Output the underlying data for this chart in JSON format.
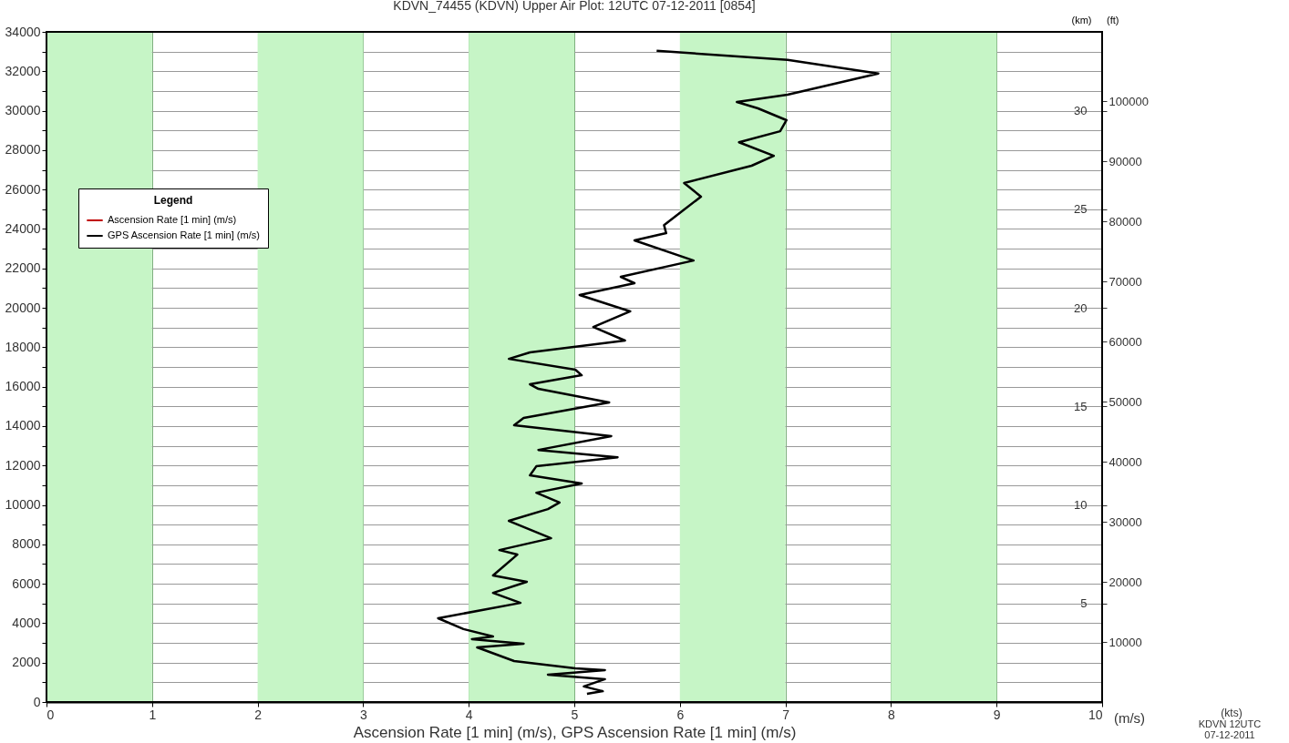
{
  "chart_data": {
    "type": "line",
    "title": "KDVN_74455 (KDVN) Upper Air Plot: 12UTC 07-12-2011 [0854]",
    "xlabel": "Ascension Rate [1 min] (m/s), GPS Ascension Rate [1 min] (m/s)",
    "y2label": "(km)",
    "y3label": "(ft)",
    "legend_title": "Legend",
    "legend": "top left",
    "grid": true,
    "marker": "none",
    "line_style": "solid",
    "xlim": [
      0,
      10
    ],
    "xticks": [
      0,
      1,
      2,
      3,
      4,
      5,
      6,
      7,
      8,
      9,
      10
    ],
    "ylim": [
      0,
      34000
    ],
    "yticks": [
      0,
      {
        "value": 1000,
        "label": null
      },
      2000,
      {
        "value": 3000,
        "label": null
      },
      4000,
      {
        "value": 5000,
        "label": null
      },
      6000,
      {
        "value": 7000,
        "label": null
      },
      8000,
      {
        "value": 9000,
        "label": null
      },
      10000,
      {
        "value": 11000,
        "label": null
      },
      12000,
      {
        "value": 13000,
        "label": null
      },
      14000,
      {
        "value": 15000,
        "label": null
      },
      16000,
      {
        "value": 17000,
        "label": null
      },
      18000,
      {
        "value": 19000,
        "label": null
      },
      20000,
      {
        "value": 21000,
        "label": null
      },
      22000,
      {
        "value": 23000,
        "label": null
      },
      24000,
      {
        "value": 25000,
        "label": null
      },
      26000,
      {
        "value": 27000,
        "label": null
      },
      28000,
      {
        "value": 29000,
        "label": null
      },
      30000,
      {
        "value": 31000,
        "label": null
      },
      32000,
      {
        "value": 33000,
        "label": null
      },
      34000
    ],
    "y2lim": [
      0,
      34
    ],
    "y2ticks": [
      5,
      10,
      15,
      20,
      25,
      30
    ],
    "y3lim": [
      0,
      111549
    ],
    "y3ticks": [
      10000,
      20000,
      30000,
      40000,
      50000,
      60000,
      70000,
      80000,
      90000,
      100000
    ],
    "bands": [
      {
        "axis": "x",
        "from": 0,
        "to": 1,
        "color": "#c6f5c6"
      },
      {
        "axis": "x",
        "from": 2,
        "to": 3,
        "color": "#c6f5c6"
      },
      {
        "axis": "x",
        "from": 4,
        "to": 5,
        "color": "#c6f5c6"
      },
      {
        "axis": "x",
        "from": 6,
        "to": 7,
        "color": "#c6f5c6"
      },
      {
        "axis": "x",
        "from": 8,
        "to": 9,
        "color": "#c6f5c6"
      }
    ],
    "series": [
      {
        "name": "Ascension Rate [1 min] (m/s)",
        "color": "#c00000"
      },
      {
        "name": "GPS Ascension Rate [1 min] (m/s)",
        "color": "#000000",
        "x": [
          5.78,
          7.02,
          7.88,
          7.02,
          6.54,
          6.74,
          7.01,
          6.95,
          6.56,
          6.89,
          6.68,
          6.04,
          6.2,
          6.02,
          5.85,
          5.87,
          5.57,
          6.13,
          5.44,
          5.57,
          5.05,
          5.53,
          5.18,
          5.48,
          4.58,
          4.38,
          5.01,
          5.07,
          4.58,
          4.66,
          5.33,
          4.52,
          4.43,
          5.35,
          4.66,
          5.41,
          4.64,
          4.58,
          5.07,
          4.64,
          4.86,
          4.75,
          4.38,
          4.78,
          4.29,
          4.46,
          4.23,
          4.55,
          4.23,
          4.49,
          3.71,
          3.95,
          4.23,
          4.03,
          4.52,
          4.08,
          4.43,
          5.01,
          5.29,
          4.75,
          5.29,
          5.09,
          5.27,
          5.12
        ],
        "values": [
          33040,
          32580,
          31890,
          30810,
          30440,
          30120,
          29520,
          28960,
          28400,
          27710,
          27210,
          26330,
          25640,
          24900,
          24200,
          23790,
          23420,
          22400,
          21570,
          21250,
          20650,
          19820,
          19030,
          18340,
          17740,
          17410,
          16860,
          16580,
          16120,
          15890,
          15200,
          14410,
          14040,
          13490,
          12790,
          12420,
          11960,
          11500,
          11090,
          10620,
          10120,
          9790,
          9190,
          8310,
          7710,
          7480,
          6420,
          6100,
          5540,
          5030,
          4250,
          3700,
          3330,
          3190,
          2960,
          2770,
          2080,
          1710,
          1620,
          1390,
          1160,
          790,
          550,
          420
        ]
      }
    ],
    "annotations": [
      "(m/s)",
      "(kts)",
      "KDVN  12UTC",
      "07-12-2011"
    ]
  }
}
